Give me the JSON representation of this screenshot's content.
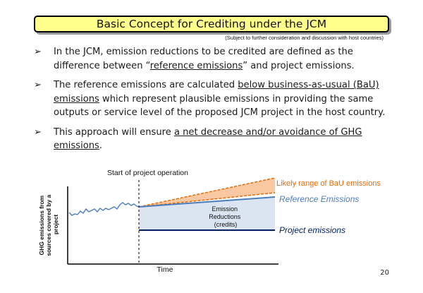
{
  "slide": {
    "title": "Basic Concept for Crediting under the JCM",
    "subtitle": "(Subject to further consideration and discussion with host countries)",
    "page_number": "20"
  },
  "bullets": [
    {
      "segments": [
        {
          "text": "In the JCM, emission reductions to be credited are defined as the difference between “",
          "u": false
        },
        {
          "text": "reference emissions",
          "u": true
        },
        {
          "text": "” and project emissions.",
          "u": false
        }
      ]
    },
    {
      "segments": [
        {
          "text": "The reference emissions are calculated ",
          "u": false
        },
        {
          "text": "below business-as-usual (BaU) emissions",
          "u": true
        },
        {
          "text": " which represent plausible emissions in providing the same outputs or service level of the proposed JCM project in the host country.",
          "u": false
        }
      ]
    },
    {
      "segments": [
        {
          "text": "This approach will ensure ",
          "u": false
        },
        {
          "text": "a net decrease and/or avoidance of GHG emissions",
          "u": true
        },
        {
          "text": ".",
          "u": false
        }
      ]
    }
  ],
  "diagram": {
    "start_label": "Start of project operation",
    "ylabel": "GHG emissions from sources covered by a project",
    "xlabel": "Time",
    "bau_label": "Likely range of BaU emissions",
    "reference_label": "Reference Emissions",
    "reductions_label": [
      "Emission",
      "Reductions",
      "(credits)"
    ],
    "project_label": "Project emissions",
    "colors": {
      "bau": "#e46c0a",
      "bau_fill": "#f9c8a3",
      "reference": "#4a7ebb",
      "reduction_fill": "#dbe5f1",
      "project": "#002060",
      "history": "#4a7ebb"
    }
  }
}
